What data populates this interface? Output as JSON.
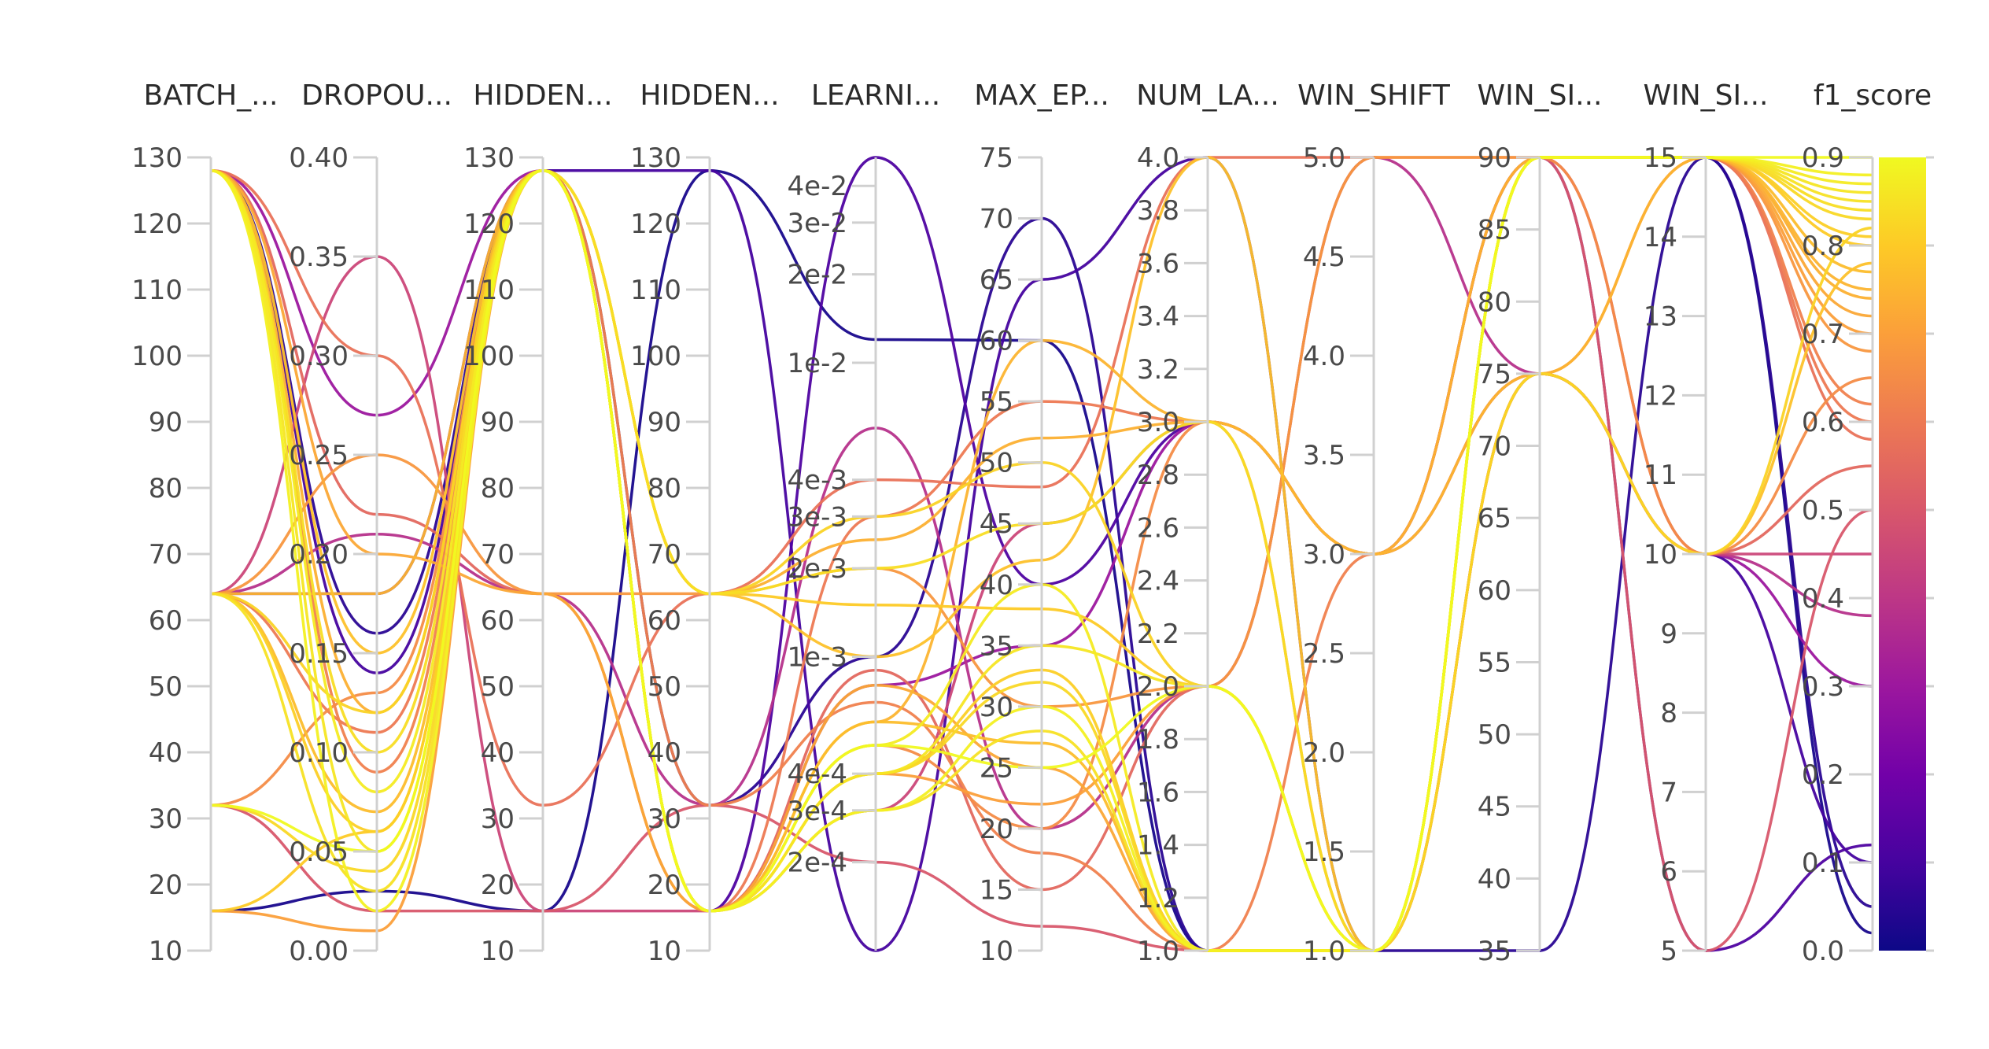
{
  "chart_data": {
    "type": "parallel_coordinates",
    "color_by": "f1_score",
    "colorscale": [
      "#0d0887",
      "#46039f",
      "#7201a8",
      "#9c179e",
      "#bd3786",
      "#d8576b",
      "#ed7953",
      "#fb9f3a",
      "#fdca26",
      "#f0f921"
    ],
    "dimensions": [
      {
        "label": "BATCH_...",
        "range": [
          10,
          130
        ],
        "scale": "linear",
        "ticks": [
          "10",
          "20",
          "30",
          "40",
          "50",
          "60",
          "70",
          "80",
          "90",
          "100",
          "110",
          "120",
          "130"
        ],
        "tick_values": [
          10,
          20,
          30,
          40,
          50,
          60,
          70,
          80,
          90,
          100,
          110,
          120,
          130
        ]
      },
      {
        "label": "DROPOU...",
        "range": [
          0,
          0.4
        ],
        "scale": "linear",
        "ticks": [
          "0.00",
          "0.05",
          "0.10",
          "0.15",
          "0.20",
          "0.25",
          "0.30",
          "0.35",
          "0.40"
        ],
        "tick_values": [
          0,
          0.05,
          0.1,
          0.15,
          0.2,
          0.25,
          0.3,
          0.35,
          0.4
        ]
      },
      {
        "label": "HIDDEN...",
        "range": [
          10,
          130
        ],
        "scale": "linear",
        "ticks": [
          "10",
          "20",
          "30",
          "40",
          "50",
          "60",
          "70",
          "80",
          "90",
          "100",
          "110",
          "120",
          "130"
        ],
        "tick_values": [
          10,
          20,
          30,
          40,
          50,
          60,
          70,
          80,
          90,
          100,
          110,
          120,
          130
        ]
      },
      {
        "label": "HIDDEN...",
        "range": [
          10,
          130
        ],
        "scale": "linear",
        "ticks": [
          "10",
          "20",
          "30",
          "40",
          "50",
          "60",
          "70",
          "80",
          "90",
          "100",
          "110",
          "120",
          "130"
        ],
        "tick_values": [
          10,
          20,
          30,
          40,
          50,
          60,
          70,
          80,
          90,
          100,
          110,
          120,
          130
        ]
      },
      {
        "label": "LEARNI...",
        "range": [
          0.0001,
          0.05
        ],
        "scale": "log",
        "ticks": [
          "2e-4",
          "3e-4",
          "4e-4",
          "1e-3",
          "2e-3",
          "3e-3",
          "4e-3",
          "1e-2",
          "2e-2",
          "3e-2",
          "4e-2"
        ],
        "tick_values": [
          0.0002,
          0.0003,
          0.0004,
          0.001,
          0.002,
          0.003,
          0.004,
          0.01,
          0.02,
          0.03,
          0.04
        ]
      },
      {
        "label": "MAX_EP...",
        "range": [
          10,
          75
        ],
        "scale": "linear",
        "ticks": [
          "10",
          "15",
          "20",
          "25",
          "30",
          "35",
          "40",
          "45",
          "50",
          "55",
          "60",
          "65",
          "70",
          "75"
        ],
        "tick_values": [
          10,
          15,
          20,
          25,
          30,
          35,
          40,
          45,
          50,
          55,
          60,
          65,
          70,
          75
        ]
      },
      {
        "label": "NUM_LA...",
        "range": [
          1,
          4
        ],
        "scale": "linear",
        "ticks": [
          "1.0",
          "1.2",
          "1.4",
          "1.6",
          "1.8",
          "2.0",
          "2.2",
          "2.4",
          "2.6",
          "2.8",
          "3.0",
          "3.2",
          "3.4",
          "3.6",
          "3.8",
          "4.0"
        ],
        "tick_values": [
          1,
          1.2,
          1.4,
          1.6,
          1.8,
          2,
          2.2,
          2.4,
          2.6,
          2.8,
          3,
          3.2,
          3.4,
          3.6,
          3.8,
          4
        ]
      },
      {
        "label": "WIN_SHIFT",
        "range": [
          1,
          5
        ],
        "scale": "linear",
        "ticks": [
          "1.0",
          "1.5",
          "2.0",
          "2.5",
          "3.0",
          "3.5",
          "4.0",
          "4.5",
          "5.0"
        ],
        "tick_values": [
          1,
          1.5,
          2,
          2.5,
          3,
          3.5,
          4,
          4.5,
          5
        ]
      },
      {
        "label": "WIN_SI...",
        "range": [
          35,
          90
        ],
        "scale": "linear",
        "ticks": [
          "35",
          "40",
          "45",
          "50",
          "55",
          "60",
          "65",
          "70",
          "75",
          "80",
          "85",
          "90"
        ],
        "tick_values": [
          35,
          40,
          45,
          50,
          55,
          60,
          65,
          70,
          75,
          80,
          85,
          90
        ]
      },
      {
        "label": "WIN_SI...",
        "range": [
          5,
          15
        ],
        "scale": "linear",
        "ticks": [
          "5",
          "6",
          "7",
          "8",
          "9",
          "10",
          "11",
          "12",
          "13",
          "14",
          "15"
        ],
        "tick_values": [
          5,
          6,
          7,
          8,
          9,
          10,
          11,
          12,
          13,
          14,
          15
        ]
      },
      {
        "label": "f1_score",
        "range": [
          0,
          0.9
        ],
        "scale": "linear",
        "ticks": [
          "0.0",
          "0.1",
          "0.2",
          "0.3",
          "0.4",
          "0.5",
          "0.6",
          "0.7",
          "0.8",
          "0.9"
        ],
        "tick_values": [
          0,
          0.1,
          0.2,
          0.3,
          0.4,
          0.5,
          0.6,
          0.7,
          0.8,
          0.9
        ]
      }
    ],
    "colorbar": {
      "range": [
        0,
        0.9
      ],
      "ticks": [
        "0.0",
        "0.1",
        "0.2",
        "0.3",
        "0.4",
        "0.5",
        "0.6",
        "0.7",
        "0.8",
        "0.9"
      ],
      "tick_values": [
        0,
        0.1,
        0.2,
        0.3,
        0.4,
        0.5,
        0.6,
        0.7,
        0.8,
        0.9
      ]
    },
    "records": [
      [
        128,
        0.02,
        128,
        16,
        0.0003,
        30,
        1,
        1,
        90,
        15,
        0.88
      ],
      [
        128,
        0.05,
        128,
        16,
        0.0004,
        35,
        2,
        1,
        90,
        15,
        0.86
      ],
      [
        128,
        0.08,
        128,
        16,
        0.0005,
        40,
        1,
        1,
        90,
        15,
        0.87
      ],
      [
        128,
        0.1,
        128,
        64,
        0.002,
        45,
        3,
        1,
        90,
        15,
        0.84
      ],
      [
        64,
        0.12,
        128,
        64,
        0.003,
        50,
        2,
        1,
        75,
        10,
        0.82
      ],
      [
        64,
        0.03,
        128,
        16,
        0.0003,
        28,
        1,
        1,
        90,
        15,
        0.85
      ],
      [
        32,
        0.04,
        128,
        16,
        0.0004,
        32,
        1,
        1,
        90,
        15,
        0.83
      ],
      [
        16,
        0.06,
        128,
        64,
        0.0015,
        38,
        2,
        1,
        90,
        15,
        0.8
      ],
      [
        128,
        0.15,
        128,
        64,
        0.001,
        42,
        4,
        1,
        75,
        10,
        0.78
      ],
      [
        64,
        0.18,
        128,
        16,
        0.0006,
        60,
        3,
        3,
        75,
        15,
        0.75
      ],
      [
        128,
        0.2,
        64,
        16,
        0.0008,
        25,
        1,
        1,
        90,
        15,
        0.72
      ],
      [
        64,
        0.25,
        64,
        64,
        0.002,
        30,
        2,
        5,
        90,
        15,
        0.68
      ],
      [
        32,
        0.13,
        128,
        16,
        0.0005,
        20,
        3,
        1,
        90,
        10,
        0.65
      ],
      [
        128,
        0.09,
        128,
        32,
        0.0007,
        18,
        1,
        3,
        75,
        15,
        0.62
      ],
      [
        16,
        0.01,
        128,
        16,
        0.0004,
        22,
        2,
        1,
        90,
        15,
        0.7
      ],
      [
        64,
        0.07,
        128,
        16,
        0.0006,
        27,
        1,
        1,
        90,
        15,
        0.77
      ],
      [
        128,
        0.3,
        32,
        64,
        0.004,
        48,
        4,
        5,
        90,
        15,
        0.58
      ],
      [
        128,
        0.22,
        64,
        16,
        0.0009,
        15,
        2,
        1,
        75,
        10,
        0.55
      ],
      [
        64,
        0.11,
        128,
        16,
        0.003,
        55,
        3,
        3,
        90,
        15,
        0.6
      ],
      [
        32,
        0.02,
        16,
        32,
        0.0002,
        12,
        1,
        1,
        90,
        5,
        0.5
      ],
      [
        64,
        0.35,
        16,
        16,
        0.0003,
        45,
        3,
        3,
        90,
        10,
        0.45
      ],
      [
        128,
        0.16,
        128,
        32,
        0.001,
        70,
        1,
        1,
        35,
        15,
        0.05
      ],
      [
        128,
        0.14,
        128,
        128,
        0.0001,
        65,
        4,
        1,
        75,
        10,
        0.1
      ],
      [
        64,
        0.18,
        128,
        16,
        0.05,
        40,
        3,
        3,
        90,
        5,
        0.12
      ],
      [
        16,
        0.03,
        16,
        128,
        0.012,
        60,
        1,
        1,
        90,
        15,
        0.02
      ],
      [
        128,
        0.27,
        128,
        16,
        0.0008,
        35,
        3,
        3,
        75,
        10,
        0.3
      ],
      [
        64,
        0.21,
        64,
        32,
        0.006,
        20,
        2,
        5,
        75,
        10,
        0.38
      ],
      [
        32,
        0.05,
        128,
        16,
        0.0005,
        25,
        2,
        1,
        90,
        15,
        0.9
      ],
      [
        128,
        0.12,
        128,
        64,
        0.0025,
        52,
        3,
        3,
        90,
        15,
        0.74
      ],
      [
        64,
        0.06,
        128,
        16,
        0.0004,
        33,
        1,
        1,
        90,
        15,
        0.81
      ]
    ]
  }
}
